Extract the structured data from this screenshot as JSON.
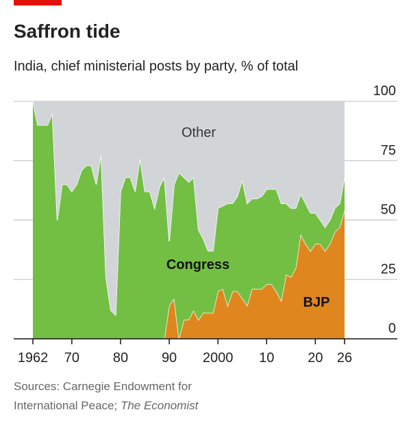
{
  "chart_data": {
    "type": "stacked-area",
    "title": "Saffron tide",
    "subtitle": "India, chief ministerial posts by party, % of total",
    "source": [
      "Sources: Carnegie Endowment for",
      "International Peace; "
    ],
    "source_italic": "The Economist",
    "x": [
      1962,
      1963,
      1964,
      1965,
      1966,
      1967,
      1968,
      1969,
      1970,
      1971,
      1972,
      1973,
      1974,
      1975,
      1976,
      1977,
      1978,
      1979,
      1980,
      1981,
      1982,
      1983,
      1984,
      1985,
      1986,
      1987,
      1988,
      1989,
      1990,
      1991,
      1992,
      1993,
      1994,
      1995,
      1996,
      1997,
      1998,
      1999,
      2000,
      2001,
      2002,
      2003,
      2004,
      2005,
      2006,
      2007,
      2008,
      2009,
      2010,
      2011,
      2012,
      2013,
      2014,
      2015,
      2016,
      2017,
      2018,
      2019,
      2020,
      2021,
      2022,
      2023,
      2024,
      2025,
      2026
    ],
    "series": [
      {
        "name": "BJP",
        "color": "#e0861e",
        "values": [
          null,
          null,
          null,
          null,
          null,
          null,
          null,
          null,
          null,
          null,
          null,
          null,
          null,
          null,
          null,
          null,
          null,
          null,
          null,
          null,
          null,
          null,
          null,
          null,
          null,
          null,
          null,
          0,
          14,
          17,
          0,
          8,
          8,
          12,
          8,
          11,
          11,
          11,
          20,
          21,
          14,
          20,
          20,
          17,
          14,
          21,
          21,
          21,
          23,
          23,
          20,
          16,
          27,
          26,
          30,
          44,
          40,
          37,
          40,
          40,
          37,
          40,
          45,
          47,
          54
        ]
      },
      {
        "name": "Congress",
        "color": "#72bf44",
        "values": [
          100,
          90,
          90,
          90,
          95,
          50,
          65,
          65,
          62,
          65,
          71,
          73,
          73,
          65,
          78,
          26,
          12,
          10,
          62,
          68,
          68,
          62,
          76,
          62,
          62,
          55,
          64,
          68,
          27,
          48,
          70,
          60,
          58,
          56,
          38,
          31,
          26,
          26,
          35,
          35,
          43,
          37,
          40,
          50,
          43,
          38,
          38,
          39,
          40,
          40,
          43,
          41,
          30,
          29,
          25,
          17,
          17,
          16,
          13,
          10,
          10,
          10,
          10,
          10,
          14
        ]
      },
      {
        "name": "Other",
        "color": "#d2d5d8",
        "values": [
          0,
          10,
          10,
          10,
          5,
          50,
          35,
          35,
          38,
          35,
          29,
          27,
          27,
          35,
          22,
          74,
          88,
          90,
          38,
          32,
          32,
          38,
          24,
          38,
          38,
          45,
          36,
          32,
          59,
          35,
          30,
          32,
          34,
          32,
          54,
          58,
          63,
          63,
          45,
          44,
          43,
          43,
          40,
          33,
          43,
          41,
          41,
          40,
          37,
          37,
          37,
          43,
          43,
          45,
          45,
          39,
          43,
          47,
          47,
          50,
          53,
          50,
          45,
          43,
          32
        ]
      }
    ],
    "xlim": [
      1962,
      2026
    ],
    "xticks": [
      1962,
      {
        "value": 1970,
        "label": "70"
      },
      {
        "value": 1980,
        "label": "80"
      },
      {
        "value": 1990,
        "label": "90"
      },
      2000,
      {
        "value": 2010,
        "label": "10"
      },
      {
        "value": 2020,
        "label": "20"
      },
      {
        "value": 2026,
        "label": "26"
      }
    ],
    "ylim": [
      0,
      100
    ],
    "yticks": [
      0,
      25,
      50,
      75,
      100
    ],
    "grid": true
  }
}
